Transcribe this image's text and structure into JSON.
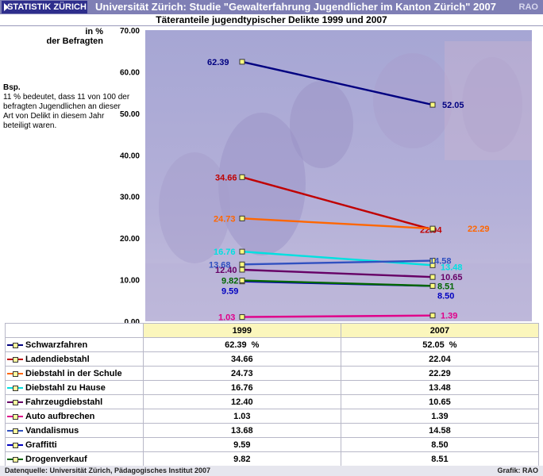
{
  "header": {
    "logo_text": "STATISTIK ZÜRICH",
    "title": "Universität Zürich: Studie \"Gewalterfahrung Jugendlicher im Kanton Zürich\" 2007",
    "rao": "RAO"
  },
  "subtitle": "Täteranteile jugendtypischer Delikte 1999 und 2007",
  "y_axis_label": {
    "line1": "in %",
    "line2": "der Befragten"
  },
  "note": {
    "title": "Bsp.",
    "text": "11 % bedeutet, dass 11 von 100 der befragten Jugendlichen an dieser Art von Delikt in diesem Jahr beteiligt waren."
  },
  "footer": {
    "source": "Datenquelle: Universität Zürich, Pädagogisches Institut 2007",
    "credit": "Grafik: RAO"
  },
  "table": {
    "col_1999": "1999",
    "col_2007": "2007",
    "unit": "%"
  },
  "chart_data": {
    "type": "line",
    "title": "Täteranteile jugendtypischer Delikte 1999 und 2007",
    "xlabel": "",
    "ylabel": "in % der Befragten",
    "categories": [
      "1999",
      "2007"
    ],
    "ylim": [
      0,
      70
    ],
    "yticks": [
      "0.00",
      "10.00",
      "20.00",
      "30.00",
      "40.00",
      "50.00",
      "60.00",
      "70.00"
    ],
    "grid": false,
    "legend": "table-below",
    "series": [
      {
        "name": "Schwarzfahren",
        "color": "#000080",
        "values": [
          62.39,
          52.05
        ],
        "labels": [
          "62.39",
          "52.05"
        ]
      },
      {
        "name": "Ladendiebstahl",
        "color": "#c00000",
        "values": [
          34.66,
          22.04
        ],
        "labels": [
          "34.66",
          "22.04"
        ]
      },
      {
        "name": "Diebstahl in der Schule",
        "color": "#ff6600",
        "values": [
          24.73,
          22.29
        ],
        "labels": [
          "24.73",
          "22.29"
        ]
      },
      {
        "name": "Diebstahl zu Hause",
        "color": "#00e0e0",
        "values": [
          16.76,
          13.48
        ],
        "labels": [
          "16.76",
          "13.48"
        ]
      },
      {
        "name": "Fahrzeugdiebstahl",
        "color": "#660066",
        "values": [
          12.4,
          10.65
        ],
        "labels": [
          "12.40",
          "10.65"
        ]
      },
      {
        "name": "Auto aufbrechen",
        "color": "#e0008a",
        "values": [
          1.03,
          1.39
        ],
        "labels": [
          "1.03",
          "1.39"
        ]
      },
      {
        "name": "Vandalismus",
        "color": "#3050c0",
        "values": [
          13.68,
          14.58
        ],
        "labels": [
          "13.68",
          "14.58"
        ]
      },
      {
        "name": "Graffitti",
        "color": "#0000c0",
        "values": [
          9.59,
          8.5
        ],
        "labels": [
          "9.59",
          "8.50"
        ]
      },
      {
        "name": "Drogenverkauf",
        "color": "#006600",
        "values": [
          9.82,
          8.51
        ],
        "labels": [
          "9.82",
          "8.51"
        ]
      }
    ]
  }
}
